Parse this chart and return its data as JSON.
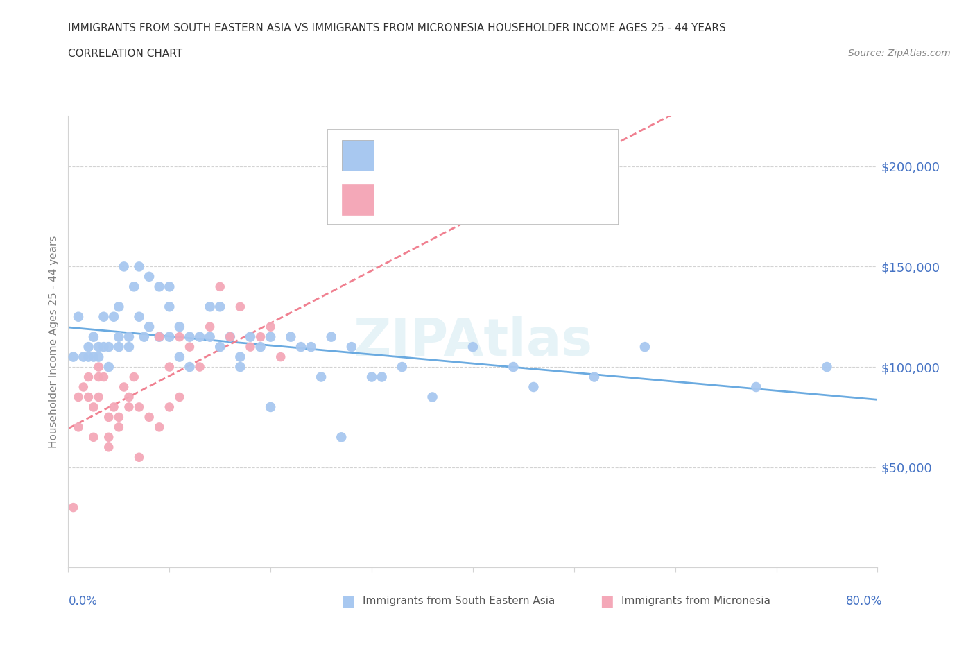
{
  "title_line1": "IMMIGRANTS FROM SOUTH EASTERN ASIA VS IMMIGRANTS FROM MICRONESIA HOUSEHOLDER INCOME AGES 25 - 44 YEARS",
  "title_line2": "CORRELATION CHART",
  "source_text": "Source: ZipAtlas.com",
  "ylabel": "Householder Income Ages 25 - 44 years",
  "watermark": "ZIPAtlas",
  "color_sea": "#a8c8f0",
  "color_mic": "#f4a8b8",
  "trendline_sea": "#6aaae0",
  "trendline_mic": "#f08090",
  "ytick_values": [
    50000,
    100000,
    150000,
    200000
  ],
  "ylim": [
    0,
    225000
  ],
  "xlim": [
    0.0,
    0.8
  ],
  "sea_x": [
    0.005,
    0.01,
    0.015,
    0.02,
    0.02,
    0.025,
    0.025,
    0.03,
    0.03,
    0.035,
    0.035,
    0.04,
    0.04,
    0.045,
    0.05,
    0.05,
    0.05,
    0.055,
    0.06,
    0.06,
    0.065,
    0.07,
    0.07,
    0.075,
    0.08,
    0.08,
    0.09,
    0.09,
    0.1,
    0.1,
    0.1,
    0.11,
    0.11,
    0.12,
    0.12,
    0.13,
    0.14,
    0.14,
    0.15,
    0.15,
    0.16,
    0.17,
    0.17,
    0.18,
    0.19,
    0.2,
    0.2,
    0.22,
    0.23,
    0.24,
    0.25,
    0.26,
    0.27,
    0.28,
    0.3,
    0.31,
    0.33,
    0.36,
    0.4,
    0.44,
    0.46,
    0.52,
    0.57,
    0.68,
    0.75
  ],
  "sea_y": [
    105000,
    125000,
    105000,
    110000,
    105000,
    105000,
    115000,
    110000,
    105000,
    110000,
    125000,
    110000,
    100000,
    125000,
    110000,
    130000,
    115000,
    150000,
    115000,
    110000,
    140000,
    150000,
    125000,
    115000,
    145000,
    120000,
    140000,
    115000,
    140000,
    115000,
    130000,
    120000,
    105000,
    115000,
    100000,
    115000,
    130000,
    115000,
    110000,
    130000,
    115000,
    105000,
    100000,
    115000,
    110000,
    115000,
    80000,
    115000,
    110000,
    110000,
    95000,
    115000,
    65000,
    110000,
    95000,
    95000,
    100000,
    85000,
    110000,
    100000,
    90000,
    95000,
    110000,
    90000,
    100000
  ],
  "mic_x": [
    0.005,
    0.01,
    0.01,
    0.015,
    0.02,
    0.02,
    0.025,
    0.025,
    0.03,
    0.03,
    0.03,
    0.035,
    0.04,
    0.04,
    0.04,
    0.045,
    0.05,
    0.05,
    0.055,
    0.06,
    0.06,
    0.065,
    0.07,
    0.07,
    0.08,
    0.09,
    0.09,
    0.1,
    0.1,
    0.11,
    0.11,
    0.12,
    0.13,
    0.14,
    0.15,
    0.16,
    0.17,
    0.18,
    0.19,
    0.2,
    0.21
  ],
  "mic_y": [
    30000,
    70000,
    85000,
    90000,
    95000,
    85000,
    65000,
    80000,
    95000,
    85000,
    100000,
    95000,
    65000,
    75000,
    60000,
    80000,
    75000,
    70000,
    90000,
    80000,
    85000,
    95000,
    80000,
    55000,
    75000,
    70000,
    115000,
    80000,
    100000,
    85000,
    115000,
    110000,
    100000,
    120000,
    140000,
    115000,
    130000,
    110000,
    115000,
    120000,
    105000
  ]
}
